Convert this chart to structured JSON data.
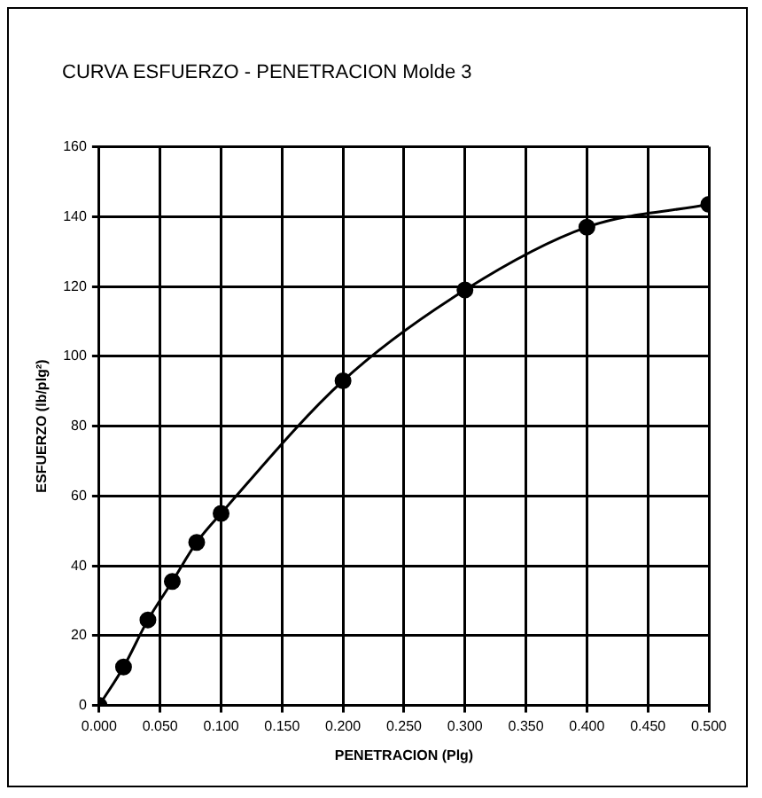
{
  "chart_data": {
    "type": "line",
    "title": "CURVA ESFUERZO - PENETRACION  Molde 3",
    "xlabel": "PENETRACION (Plg)",
    "ylabel": "ESFUERZO (lb/plg²)",
    "x": [
      0,
      0.02,
      0.04,
      0.06,
      0.08,
      0.1,
      0.2,
      0.3,
      0.4,
      0.5
    ],
    "series": [
      {
        "color": "#000000",
        "values": [
          0,
          11,
          24.5,
          35.5,
          46.7,
          55,
          93,
          119,
          137,
          143.5
        ]
      }
    ],
    "xlim": [
      0,
      0.5
    ],
    "xticks": [
      {
        "value": 0,
        "label": "0.000"
      },
      {
        "value": 0.05,
        "label": "0.050"
      },
      {
        "value": 0.1,
        "label": "0.100"
      },
      {
        "value": 0.15,
        "label": "0.150"
      },
      {
        "value": 0.2,
        "label": "0.200"
      },
      {
        "value": 0.25,
        "label": "0.250"
      },
      {
        "value": 0.3,
        "label": "0.300"
      },
      {
        "value": 0.35,
        "label": "0.350"
      },
      {
        "value": 0.4,
        "label": "0.400"
      },
      {
        "value": 0.45,
        "label": "0.450"
      },
      {
        "value": 0.5,
        "label": "0.500"
      }
    ],
    "ylim": [
      0,
      160
    ],
    "yticks": [
      0,
      20,
      40,
      60,
      80,
      100,
      120,
      140,
      160
    ],
    "grid": true,
    "legend": false,
    "marker": "circle",
    "line_style": "solid"
  }
}
